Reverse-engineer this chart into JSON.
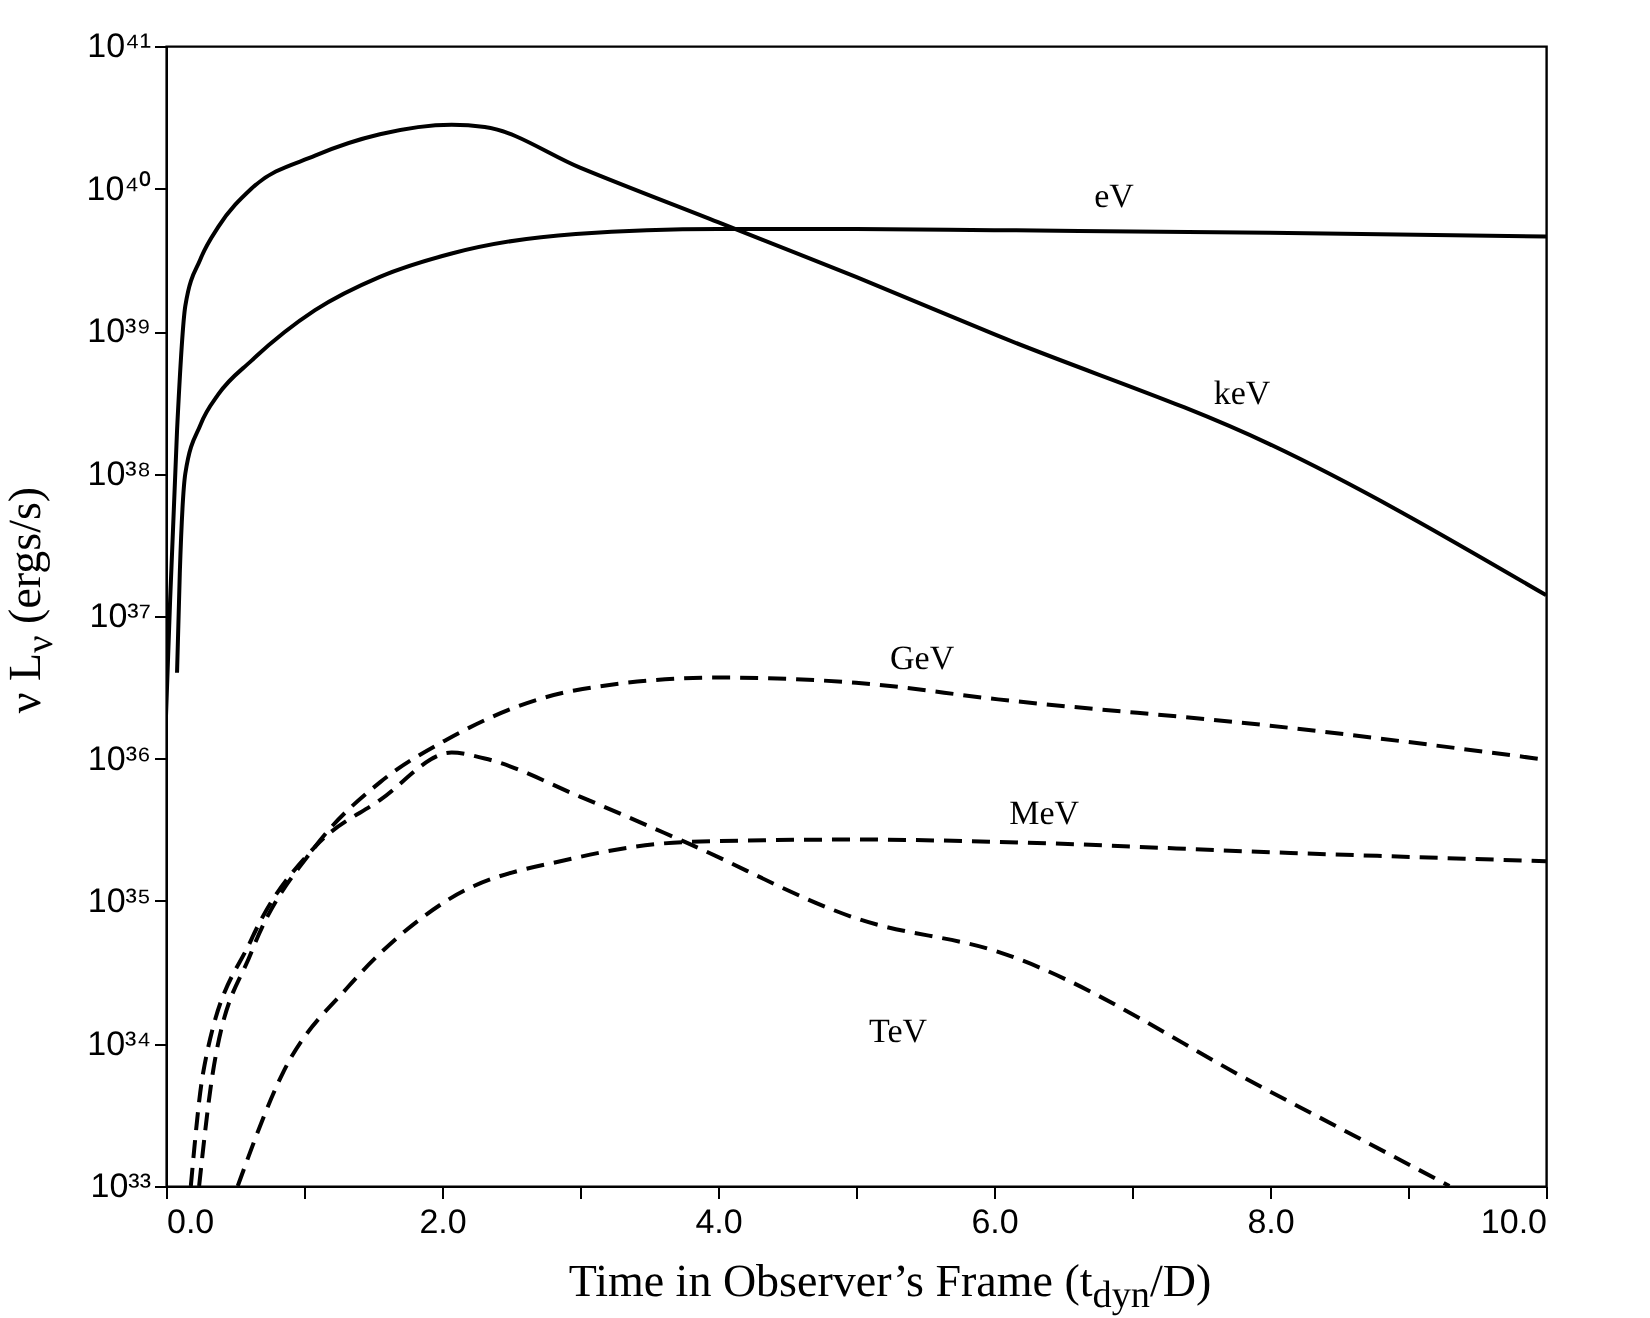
{
  "chart_data": {
    "type": "line",
    "xlabel": "Time in Observer’s Frame (t$_{dyn}$/D)",
    "ylabel": "ν L$_{ν}$  (ergs/s)",
    "log": "y",
    "grid": false,
    "legend": false,
    "marker": "none",
    "xlim": [
      0,
      10
    ],
    "xticks": [
      {
        "value": 0,
        "label": "0.0"
      },
      {
        "value": 1,
        "label": null
      },
      {
        "value": 2,
        "label": "2.0"
      },
      {
        "value": 3,
        "label": null
      },
      {
        "value": 4,
        "label": "4.0"
      },
      {
        "value": 5,
        "label": null
      },
      {
        "value": 6,
        "label": "6.0"
      },
      {
        "value": 7,
        "label": null
      },
      {
        "value": 8,
        "label": "8.0"
      },
      {
        "value": 9,
        "label": null
      },
      {
        "value": 10,
        "label": "10.0"
      }
    ],
    "ylim": [
      1e+33,
      1e+41
    ],
    "yticks": [
      {
        "value": 1e+33,
        "label": "10³³"
      },
      {
        "value": 1e+34,
        "label": "10³⁴"
      },
      {
        "value": 1e+35,
        "label": "10³⁵"
      },
      {
        "value": 1e+36,
        "label": "10³⁶"
      },
      {
        "value": 1e+37,
        "label": "10³⁷"
      },
      {
        "value": 1e+38,
        "label": "10³⁸"
      },
      {
        "value": 1e+39,
        "label": "10³⁹"
      },
      {
        "value": 1e+40,
        "label": "10⁴⁰"
      },
      {
        "value": 1e+41,
        "label": "10⁴¹"
      }
    ],
    "series": [
      {
        "name": "eV",
        "color": "#000000",
        "line_style": "solid",
        "x": [
          0.08,
          0.1,
          0.14,
          0.25,
          0.38,
          0.62,
          1.08,
          1.55,
          2.07,
          2.97,
          4,
          5,
          6,
          8,
          10
        ],
        "values": [
          4e+36,
          2e+37,
          1e+38,
          2.2e+38,
          3.6e+38,
          6.2e+38,
          1.4e+39,
          2.4e+39,
          3.5e+39,
          4.8e+39,
          5.2e+39,
          5.2e+39,
          5.1e+39,
          4.9e+39,
          4.6e+39
        ]
      },
      {
        "name": "keV",
        "color": "#000000",
        "line_style": "solid",
        "x": [
          0,
          0.03,
          0.08,
          0.14,
          0.25,
          0.38,
          0.62,
          1.08,
          1.55,
          2.07,
          2.31,
          3,
          4,
          5,
          6,
          8,
          10
        ],
        "values": [
          2e+36,
          1.3e+37,
          2e+38,
          1.5e+39,
          3.2e+39,
          5.4e+39,
          1e+40,
          1.7e+40,
          2.4e+40,
          2.8e+40,
          2.7e+40,
          1.4e+40,
          5.8e+39,
          2.4e+39,
          9.5e+38,
          1.6e+38,
          1.4e+37
        ]
      },
      {
        "name": "GeV",
        "color": "#000000",
        "line_style": "dashed",
        "x": [
          0.24,
          0.34,
          0.62,
          1.08,
          1.55,
          2.03,
          2.96,
          4,
          5,
          6.03,
          8,
          10
        ],
        "values": [
          1e+33,
          6.3e+33,
          4.4e+34,
          2.4e+35,
          6.8e+35,
          1.35e+36,
          3e+36,
          3.7e+36,
          3.4e+36,
          2.6e+36,
          1.7e+36,
          9.8e+35
        ]
      },
      {
        "name": "MeV",
        "color": "#000000",
        "line_style": "dashed",
        "x": [
          0.52,
          0.85,
          1.32,
          2.03,
          2.96,
          3.8,
          5,
          6.03,
          8,
          10
        ],
        "values": [
          1e+33,
          6.3e+33,
          2.5e+34,
          1e+35,
          2e+35,
          2.6e+35,
          2.7e+35,
          2.6e+35,
          2.2e+35,
          1.9e+35
        ]
      },
      {
        "name": "TeV",
        "color": "#000000",
        "line_style": "dashed",
        "x": [
          0.18,
          0.27,
          0.62,
          1.08,
          1.55,
          2.07,
          2.31,
          3,
          3.76,
          5.03,
          6.03,
          8,
          9.3
        ],
        "values": [
          1e+33,
          6.3e+33,
          5.4e+34,
          2.4e+35,
          5.1e+35,
          1.1e+36,
          1e+36,
          5.4e+35,
          2.6e+35,
          7.4e+34,
          4.4e+34,
          4.6e+33,
          1e+33
        ]
      }
    ]
  }
}
